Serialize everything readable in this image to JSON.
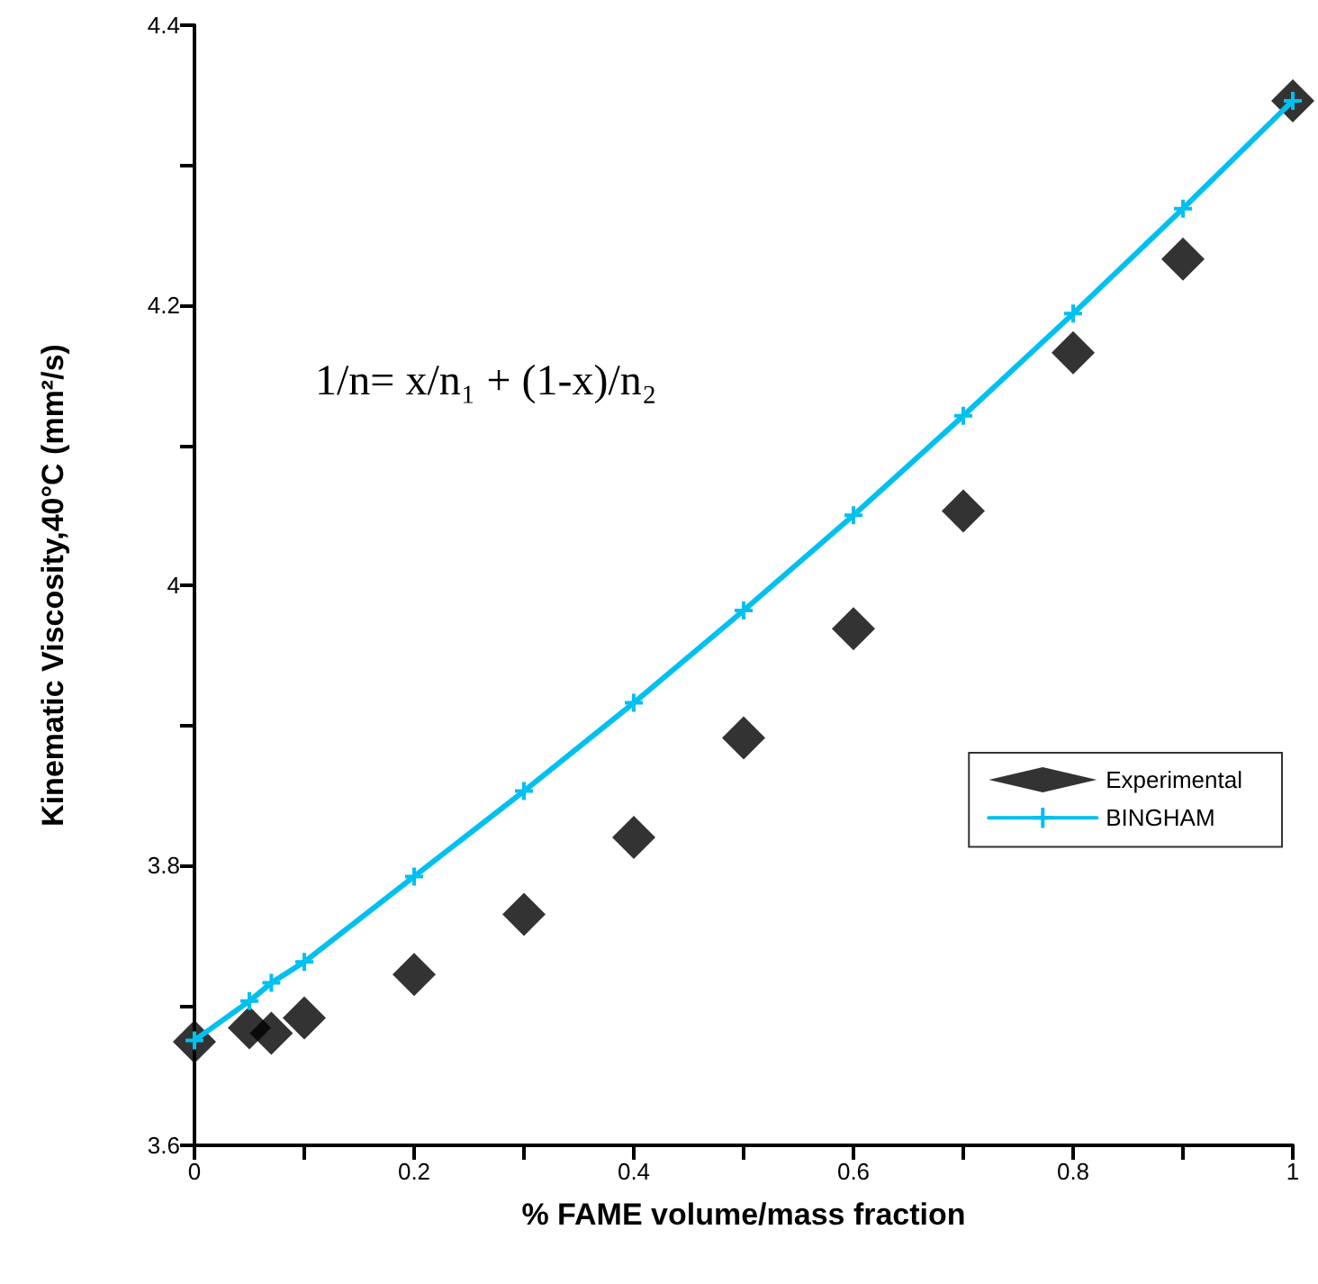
{
  "chart_data": {
    "type": "scatter",
    "xlabel": "% FAME volume/mass fraction",
    "ylabel": "Kinematic Viscosity,40°C (mm²/s)",
    "x": [
      0,
      0.05,
      0.07,
      0.1,
      0.2,
      0.3,
      0.4,
      0.5,
      0.6,
      0.7,
      0.8,
      0.9,
      1
    ],
    "series": [
      {
        "name": "Experimental",
        "marker": "diamond",
        "color": "#000000",
        "values": [
          3.674,
          3.684,
          3.68,
          3.691,
          3.722,
          3.765,
          3.82,
          3.891,
          3.969,
          4.053,
          4.166,
          4.233,
          4.346
        ]
      },
      {
        "name": "BINGHAM",
        "type": "line",
        "marker": "cross",
        "line_style": "solid",
        "color": "#00c0f0",
        "values": [
          3.675,
          3.703,
          3.716,
          3.731,
          3.792,
          3.853,
          3.916,
          3.982,
          4.05,
          4.121,
          4.194,
          4.269,
          4.346
        ]
      }
    ],
    "xlim": [
      0,
      1
    ],
    "xticks": [
      0,
      {
        "value": 0.1,
        "label": null
      },
      0.2,
      {
        "value": 0.3,
        "label": null
      },
      0.4,
      {
        "value": 0.5,
        "label": null
      },
      0.6,
      {
        "value": 0.7,
        "label": null
      },
      0.8,
      {
        "value": 0.9,
        "label": null
      },
      1
    ],
    "ylim": [
      3.6,
      4.4
    ],
    "yticks": [
      3.6,
      {
        "value": 3.7,
        "label": null
      },
      3.8,
      {
        "value": 3.9,
        "label": null
      },
      4,
      {
        "value": 4.1,
        "label": null
      },
      4.2,
      {
        "value": 4.3,
        "label": null
      },
      4.4
    ],
    "grid": false,
    "legend": "right",
    "annotations": [
      {
        "text": "1/n= x/n₁ + (1-x)/n₂"
      }
    ]
  }
}
